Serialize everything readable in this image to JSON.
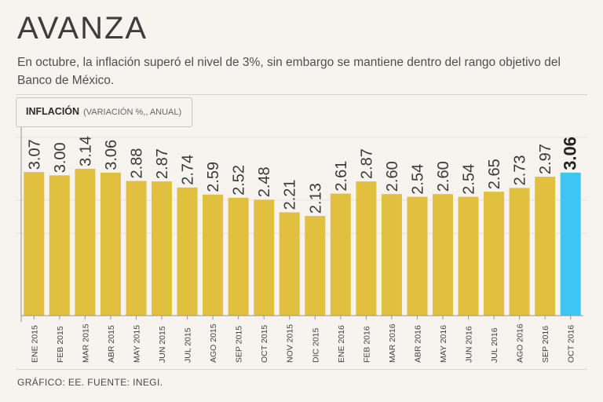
{
  "title": "AVANZA",
  "subtitle": "En octubre, la inflación superó el nivel de 3%, sin embargo se mantiene dentro del rango objetivo del Banco de México.",
  "label": {
    "main": "INFLACIÓN",
    "sub": "(VARIACIÓN %,, ANUAL)"
  },
  "footer": "GRÁFICO: EE. FUENTE: INEGI.",
  "colors": {
    "bar": "#e1bf3f",
    "highlight": "#3ec6f2"
  },
  "chart_data": {
    "type": "bar",
    "title": "INFLACIÓN",
    "ylabel": "(VARIACIÓN %,, ANUAL)",
    "xlabel": "",
    "ylim": [
      0,
      3.5
    ],
    "highlight_index": 21,
    "categories": [
      "ENE 2015",
      "FEB 2015",
      "MAR 2015",
      "ABR 2015",
      "MAY 2015",
      "JUN 2015",
      "JUL 2015",
      "AGO 2015",
      "SEP 2015",
      "OCT 2015",
      "NOV 2015",
      "DIC 2015",
      "ENE 2016",
      "FEB 2016",
      "MAR 2016",
      "ABR 2016",
      "MAY 2016",
      "JUN 2016",
      "JUL 2016",
      "AGO 2016",
      "SEP 2016",
      "OCT 2016"
    ],
    "values": [
      3.07,
      3.0,
      3.14,
      3.06,
      2.88,
      2.87,
      2.74,
      2.59,
      2.52,
      2.48,
      2.21,
      2.13,
      2.61,
      2.87,
      2.6,
      2.54,
      2.6,
      2.54,
      2.65,
      2.73,
      2.97,
      3.06
    ],
    "labels": [
      "3.07",
      "3.00",
      "3.14",
      "3.06",
      "2.88",
      "2.87",
      "2.74",
      "2.59",
      "2.52",
      "2.48",
      "2.21",
      "2.13",
      "2.61",
      "2.87",
      "2.60",
      "2.54",
      "2.60",
      "2.54",
      "2.65",
      "2.73",
      "2.97",
      "3.06"
    ]
  }
}
